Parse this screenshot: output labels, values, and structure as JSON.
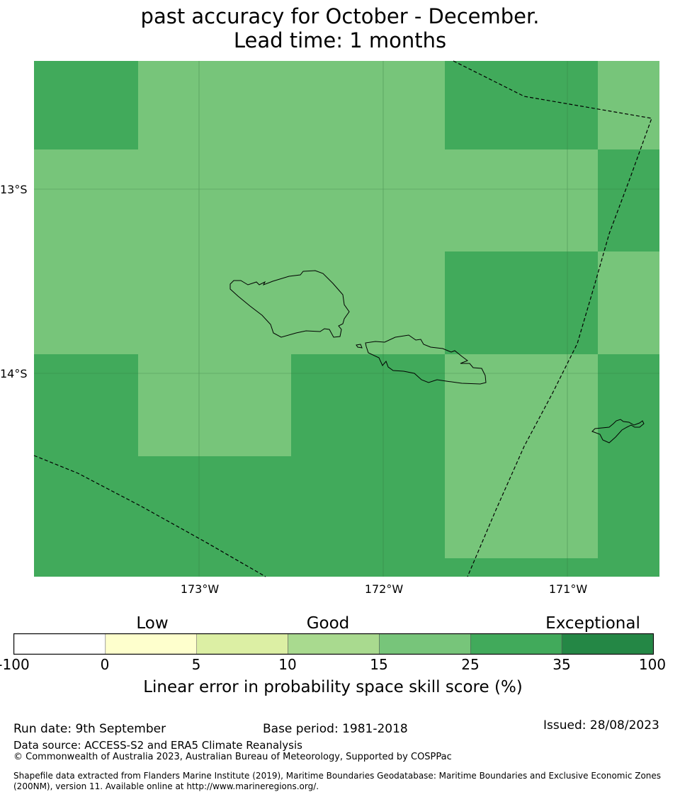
{
  "title": {
    "line1": "past accuracy for October - December.",
    "line2": "Lead time: 1 months"
  },
  "map": {
    "lat_labels": [
      "13°S",
      "14°S"
    ],
    "lon_labels": [
      "173°W",
      "172°W",
      "171°W"
    ],
    "colors": {
      "band_25_35": "#77c57a",
      "band_35_100": "#41aa5b",
      "band_15_25": "#a9da8f"
    }
  },
  "colorbar": {
    "categories": [
      "Low",
      "Good",
      "Exceptional"
    ],
    "ticks": [
      "-100",
      "0",
      "5",
      "10",
      "15",
      "25",
      "35",
      "100"
    ],
    "colors": [
      "#ffffff",
      "#feffcd",
      "#dcefa4",
      "#a9da8f",
      "#77c57a",
      "#41aa5b",
      "#248745"
    ],
    "label": "Linear error in probability space skill score (%)"
  },
  "footer": {
    "run_date": "Run date: 9th September",
    "base_period": "Base period: 1981-2018",
    "issued": "Issued: 28/08/2023",
    "data_source": "Data source: ACCESS-S2 and ERA5 Climate Reanalysis",
    "copyright": "© Commonwealth of Australia 2023, Australian Bureau of Meteorology, Supported by COSPPac",
    "shapefile_1": "Shapefile data extracted from Flanders Marine Institute (2019), Maritime Boundaries Geodatabase: Maritime Boundaries and Exclusive Economic Zones",
    "shapefile_2": "(200NM), version 11. Available online at http://www.marineregions.org/."
  }
}
